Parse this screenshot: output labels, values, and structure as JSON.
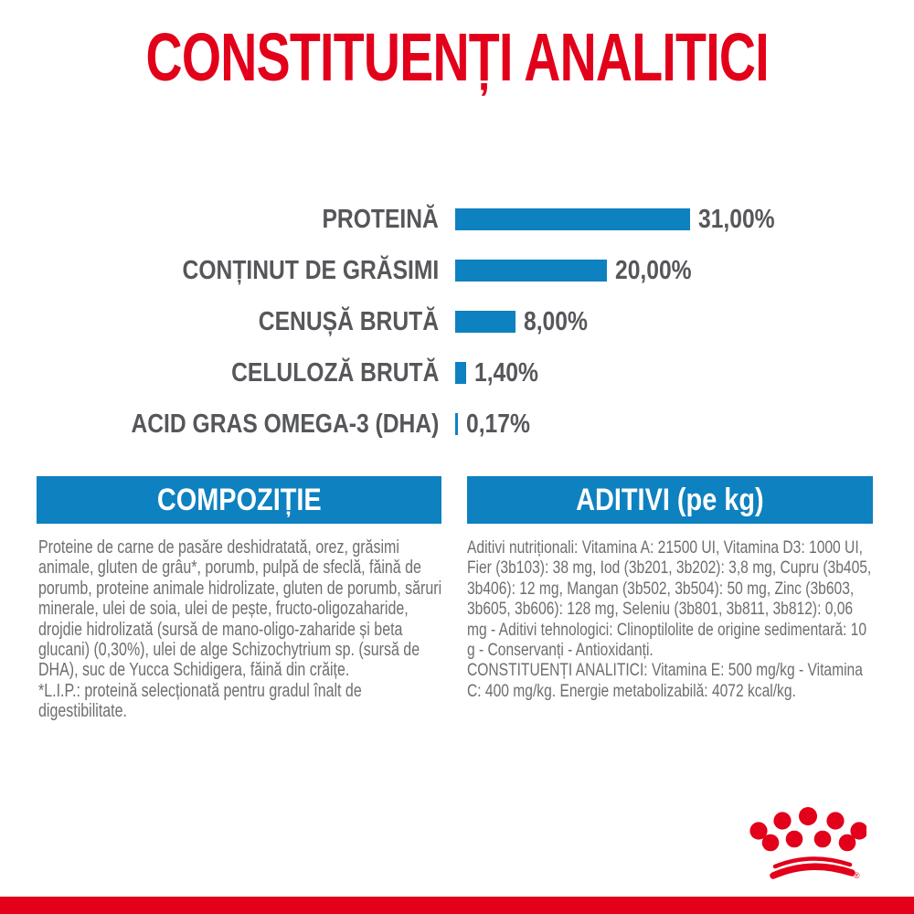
{
  "title": "CONSTITUENȚI ANALITICI",
  "colors": {
    "brand_red": "#e2001a",
    "brand_blue": "#0e81c0",
    "label_gray": "#56575b",
    "body_gray": "#6d6e71"
  },
  "chart_data": {
    "type": "bar",
    "orientation": "horizontal",
    "title": "CONSTITUENȚI ANALITICI",
    "categories": [
      "PROTEINĂ",
      "CONȚINUT DE GRĂSIMI",
      "CENUȘĂ BRUTĂ",
      "CELULOZĂ BRUTĂ",
      "ACID GRAS OMEGA-3 (DHA)"
    ],
    "values": [
      31.0,
      20.0,
      8.0,
      1.4,
      0.17
    ],
    "value_labels": [
      "31,00%",
      "20,00%",
      "8,00%",
      "1,40%",
      "0,17%"
    ],
    "unit": "%",
    "xlim": [
      0,
      31
    ],
    "bar_color": "#0e81c0",
    "grid": false,
    "legend": "none"
  },
  "sections": {
    "composition": {
      "header": "COMPOZIȚIE",
      "body": "Proteine de carne de pasăre deshidratată, orez, grăsimi animale, gluten de grâu*, porumb, pulpă de sfeclă, făină de porumb, proteine animale hidrolizate, gluten de porumb, săruri minerale, ulei de soia, ulei de pește, fructo-oligozaharide, drojdie hidrolizată (sursă de mano-oligo-zaharide și beta glucani) (0,30%), ulei de alge Schizochytrium sp. (sursă de DHA), suc de Yucca Schidigera, făină din crăițe.",
      "footnote": "*L.I.P.: proteină selecționată pentru gradul înalt de digestibilitate."
    },
    "additives": {
      "header": "ADITIVI (pe kg)",
      "body": "Aditivi nutriționali: Vitamina A: 21500 UI, Vitamina D3: 1000 UI, Fier (3b103): 38 mg, Iod (3b201, 3b202): 3,8 mg, Cupru (3b405, 3b406): 12 mg, Mangan (3b502, 3b504): 50 mg, Zinc (3b603, 3b605, 3b606): 128 mg, Seleniu (3b801, 3b811, 3b812): 0,06 mg - Aditivi tehnologici: Clinoptilolite de origine sedimentară: 10 g - Conservanți - Antioxidanți.",
      "analytical": "CONSTITUENȚI ANALITICI: Vitamina E: 500 mg/kg - Vitamina C: 400 mg/kg. Energie metabolizabilă: 4072 kcal/kg."
    }
  },
  "logo": {
    "name": "royal-canin-crown",
    "registered_mark": "®"
  }
}
